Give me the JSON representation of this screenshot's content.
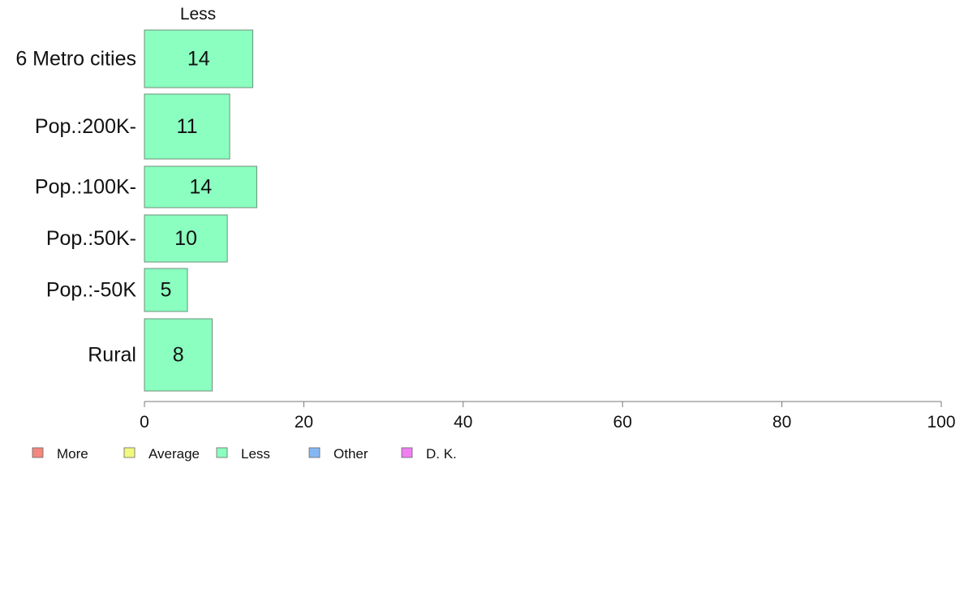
{
  "chart_data": {
    "type": "bar",
    "orientation": "horizontal",
    "title": "",
    "column_label": "Less",
    "categories": [
      "6 Metro cities",
      "Pop.:200K-",
      "Pop.:100K-",
      "Pop.:50K-",
      "Pop.:-50K",
      "Rural"
    ],
    "series": [
      {
        "name": "Less",
        "values": [
          13.6,
          10.7,
          14.1,
          10.4,
          5.4,
          8.5
        ],
        "labels": [
          "14",
          "11",
          "14",
          "10",
          "5",
          "8"
        ]
      }
    ],
    "xlim": [
      0,
      100
    ],
    "xticks": [
      "0",
      "20",
      "40",
      "60",
      "80",
      "100"
    ],
    "xlabel": "",
    "ylabel": "",
    "grid": false,
    "legend": {
      "placement": "bottom-left",
      "entries": [
        {
          "label": "More",
          "color": "#f4877f"
        },
        {
          "label": "Average",
          "color": "#f2f97e"
        },
        {
          "label": "Less",
          "color": "#8affbf"
        },
        {
          "label": "Other",
          "color": "#84b8f4"
        },
        {
          "label": "D. K.",
          "color": "#f07ff2"
        }
      ]
    },
    "bar_color": "#8affbf",
    "bar_stroke": "#6f8f7b",
    "axis_color": "#777777"
  }
}
